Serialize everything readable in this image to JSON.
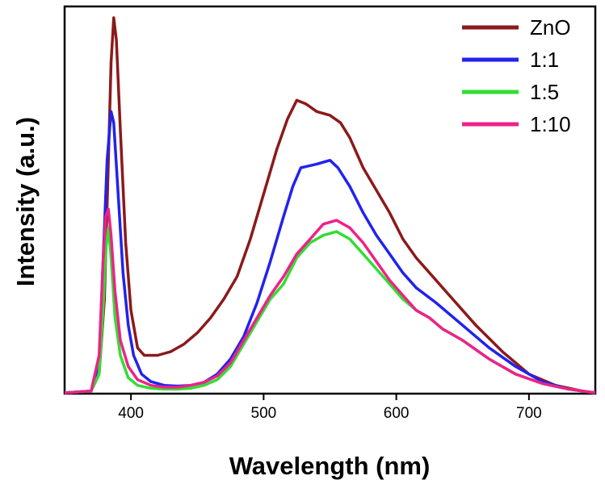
{
  "chart_data": {
    "type": "line",
    "title": "",
    "xlabel": "Wavelength (nm)",
    "ylabel": "Intensity (a.u.)",
    "xlim": [
      350,
      750
    ],
    "ylim": [
      0,
      100
    ],
    "x_ticks": [
      400,
      500,
      600,
      700
    ],
    "x_tick_labels": [
      "400",
      "500",
      "600",
      "700"
    ],
    "y_tick_labels": [],
    "grid": false,
    "legend_position": "top-right",
    "series": [
      {
        "name": "ZnO",
        "color": "#8B1A1A",
        "points": [
          [
            350,
            0
          ],
          [
            370,
            0.5
          ],
          [
            376,
            5
          ],
          [
            380,
            25
          ],
          [
            383,
            62
          ],
          [
            385,
            88
          ],
          [
            387,
            100
          ],
          [
            389,
            94
          ],
          [
            392,
            70
          ],
          [
            396,
            40
          ],
          [
            400,
            22
          ],
          [
            405,
            12
          ],
          [
            410,
            10
          ],
          [
            415,
            10
          ],
          [
            420,
            10
          ],
          [
            430,
            11
          ],
          [
            440,
            13
          ],
          [
            450,
            16
          ],
          [
            460,
            20
          ],
          [
            470,
            25
          ],
          [
            480,
            31
          ],
          [
            490,
            41
          ],
          [
            500,
            53
          ],
          [
            510,
            65
          ],
          [
            518,
            73
          ],
          [
            525,
            78
          ],
          [
            532,
            77
          ],
          [
            540,
            75
          ],
          [
            550,
            74
          ],
          [
            558,
            72
          ],
          [
            565,
            68
          ],
          [
            575,
            60
          ],
          [
            585,
            54
          ],
          [
            595,
            48
          ],
          [
            605,
            41
          ],
          [
            615,
            36
          ],
          [
            625,
            32
          ],
          [
            640,
            26
          ],
          [
            660,
            18
          ],
          [
            680,
            11
          ],
          [
            700,
            5
          ],
          [
            720,
            2
          ],
          [
            740,
            0.5
          ],
          [
            750,
            0
          ]
        ]
      },
      {
        "name": "1:1",
        "color": "#2222EE",
        "points": [
          [
            350,
            0
          ],
          [
            370,
            0.5
          ],
          [
            376,
            8
          ],
          [
            379,
            35
          ],
          [
            382,
            62
          ],
          [
            385,
            75
          ],
          [
            387,
            72
          ],
          [
            390,
            55
          ],
          [
            394,
            32
          ],
          [
            398,
            18
          ],
          [
            402,
            10
          ],
          [
            408,
            5
          ],
          [
            415,
            3
          ],
          [
            425,
            2
          ],
          [
            435,
            1.8
          ],
          [
            445,
            2
          ],
          [
            455,
            2.8
          ],
          [
            465,
            5
          ],
          [
            475,
            9
          ],
          [
            485,
            15
          ],
          [
            495,
            24
          ],
          [
            505,
            35
          ],
          [
            515,
            47
          ],
          [
            522,
            55
          ],
          [
            528,
            60
          ],
          [
            540,
            61
          ],
          [
            550,
            62
          ],
          [
            556,
            60
          ],
          [
            565,
            55
          ],
          [
            575,
            48
          ],
          [
            585,
            42
          ],
          [
            595,
            37
          ],
          [
            605,
            32
          ],
          [
            615,
            28
          ],
          [
            630,
            24
          ],
          [
            650,
            18
          ],
          [
            670,
            12
          ],
          [
            690,
            7
          ],
          [
            710,
            3
          ],
          [
            730,
            1
          ],
          [
            750,
            0
          ]
        ]
      },
      {
        "name": "1:5",
        "color": "#33DD33",
        "points": [
          [
            350,
            0
          ],
          [
            370,
            0.5
          ],
          [
            376,
            5
          ],
          [
            379,
            22
          ],
          [
            381,
            38
          ],
          [
            383,
            44
          ],
          [
            385,
            36
          ],
          [
            388,
            20
          ],
          [
            392,
            10
          ],
          [
            398,
            4
          ],
          [
            405,
            2
          ],
          [
            415,
            1.2
          ],
          [
            425,
            1
          ],
          [
            435,
            1
          ],
          [
            445,
            1.2
          ],
          [
            455,
            2
          ],
          [
            465,
            3.5
          ],
          [
            475,
            7
          ],
          [
            485,
            13
          ],
          [
            495,
            19
          ],
          [
            505,
            25
          ],
          [
            515,
            29
          ],
          [
            525,
            36
          ],
          [
            535,
            40
          ],
          [
            545,
            42
          ],
          [
            555,
            43
          ],
          [
            565,
            41
          ],
          [
            575,
            37
          ],
          [
            585,
            33
          ],
          [
            595,
            29
          ],
          [
            605,
            25
          ],
          [
            615,
            22
          ],
          [
            625,
            20
          ],
          [
            635,
            17
          ],
          [
            650,
            14
          ],
          [
            670,
            9
          ],
          [
            690,
            5
          ],
          [
            710,
            2.5
          ],
          [
            730,
            1
          ],
          [
            750,
            0
          ]
        ]
      },
      {
        "name": "1:10",
        "color": "#EE2288",
        "points": [
          [
            350,
            0
          ],
          [
            370,
            0.5
          ],
          [
            376,
            10
          ],
          [
            379,
            35
          ],
          [
            381,
            47
          ],
          [
            383,
            49
          ],
          [
            385,
            42
          ],
          [
            388,
            27
          ],
          [
            392,
            14
          ],
          [
            398,
            7
          ],
          [
            405,
            3.5
          ],
          [
            415,
            2
          ],
          [
            425,
            1.5
          ],
          [
            435,
            1.5
          ],
          [
            445,
            2
          ],
          [
            455,
            2.8
          ],
          [
            465,
            4.5
          ],
          [
            475,
            8
          ],
          [
            485,
            14
          ],
          [
            495,
            20
          ],
          [
            505,
            26
          ],
          [
            515,
            31
          ],
          [
            525,
            37
          ],
          [
            535,
            41
          ],
          [
            545,
            45
          ],
          [
            555,
            46
          ],
          [
            565,
            44
          ],
          [
            575,
            40
          ],
          [
            585,
            35
          ],
          [
            595,
            30
          ],
          [
            605,
            26
          ],
          [
            615,
            22
          ],
          [
            625,
            20
          ],
          [
            635,
            17
          ],
          [
            650,
            14
          ],
          [
            670,
            9
          ],
          [
            690,
            5
          ],
          [
            710,
            2.5
          ],
          [
            730,
            1
          ],
          [
            750,
            0
          ]
        ]
      }
    ]
  }
}
